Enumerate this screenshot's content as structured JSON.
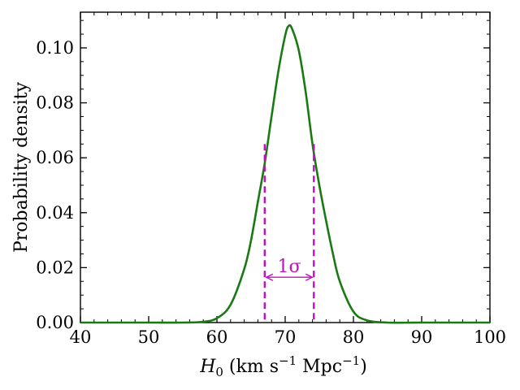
{
  "chart_data": {
    "type": "line",
    "title": "",
    "xlabel": "H0 (km s−1 Mpc−1)",
    "xlabel_parts": {
      "symbol": "H",
      "sub": "0",
      "open": " (km s",
      "exp1": "−1",
      "mid": " Mpc",
      "exp2": "−1",
      "close": ")"
    },
    "ylabel": "Probability density",
    "xlim": [
      40,
      100
    ],
    "ylim": [
      0,
      0.113
    ],
    "xticks": [
      "40",
      "50",
      "60",
      "70",
      "80",
      "90",
      "100"
    ],
    "xtick_values": [
      40,
      50,
      60,
      70,
      80,
      90,
      100
    ],
    "yticks": [
      "0.00",
      "0.02",
      "0.04",
      "0.06",
      "0.08",
      "0.10"
    ],
    "ytick_values": [
      0,
      0.02,
      0.04,
      0.06,
      0.08,
      0.1
    ],
    "x_minor_step": 2,
    "y_minor_step": 0.005,
    "grid": false,
    "series": [
      {
        "color": "#1a7a12",
        "x": [
          40,
          50,
          55,
          58,
          60,
          62,
          64,
          65,
          66,
          67,
          68,
          69,
          70,
          70.5,
          71,
          72,
          73,
          74,
          75,
          76,
          77,
          78,
          80,
          82,
          85,
          90,
          100
        ],
        "y": [
          0.0,
          0.0,
          0.0,
          0.0003,
          0.0016,
          0.0065,
          0.0195,
          0.03,
          0.044,
          0.058,
          0.075,
          0.0915,
          0.1045,
          0.108,
          0.107,
          0.099,
          0.084,
          0.065,
          0.05,
          0.037,
          0.025,
          0.015,
          0.004,
          0.0008,
          0.0,
          0.0,
          0.0
        ]
      }
    ],
    "annotations": {
      "interval": {
        "label": "1σ",
        "x_low": 67.0,
        "x_high": 74.2,
        "y_top": 0.065,
        "arrow_y": 0.0165,
        "color": "#c010c0"
      }
    }
  }
}
